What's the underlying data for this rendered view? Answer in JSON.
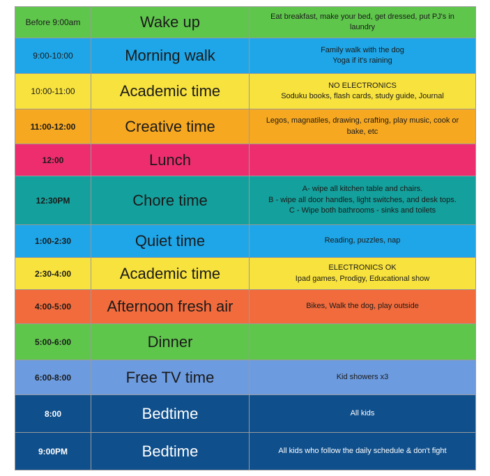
{
  "rows": [
    {
      "time": "Before 9:00am",
      "activity": "Wake up",
      "notes": [
        "Eat breakfast, make your bed, get dressed, put PJ's in",
        "laundry"
      ],
      "color": "#5fc64c",
      "text_color": "#1a1a1a",
      "height": 45
    },
    {
      "time": "9:00-10:00",
      "activity": "Morning walk",
      "notes": [
        "Family walk with the dog",
        "Yoga if it's raining"
      ],
      "color": "#1ea6e8",
      "text_color": "#1a1a1a",
      "height": 51
    },
    {
      "time": "10:00-11:00",
      "activity": "Academic time",
      "notes": [
        "NO ELECTRONICS",
        "Soduku books, flash cards, study guide, Journal"
      ],
      "color": "#f8e23d",
      "text_color": "#1a1a1a",
      "height": 51
    },
    {
      "time": "11:00-12:00",
      "activity": "Creative time",
      "notes": [
        "Legos, magnatiles, drawing, crafting, play music, cook or",
        "bake, etc"
      ],
      "color": "#f7a821",
      "text_color": "#1a1a1a",
      "height": 50
    },
    {
      "time": "12:00",
      "activity": "Lunch",
      "notes": [],
      "color": "#ee2d6e",
      "text_color": "#1a1a1a",
      "height": 46
    },
    {
      "time": "12:30PM",
      "activity": "Chore time",
      "notes": [
        "A- wipe all kitchen table and chairs.",
        "B - wipe all door handles, light switches, and desk tops.",
        "C - Wipe both bathrooms - sinks and toilets"
      ],
      "color": "#14a09c",
      "text_color": "#1a1a1a",
      "height": 70
    },
    {
      "time": "1:00-2:30",
      "activity": "Quiet time",
      "notes": [
        "Reading, puzzles, nap"
      ],
      "color": "#1ea6e8",
      "text_color": "#1a1a1a",
      "height": 47
    },
    {
      "time": "2:30-4:00",
      "activity": "Academic time",
      "notes": [
        "ELECTRONICS OK",
        "Ipad games, Prodigy, Educational show"
      ],
      "color": "#f8e23d",
      "text_color": "#1a1a1a",
      "height": 46
    },
    {
      "time": "4:00-5:00",
      "activity": "Afternoon fresh air",
      "notes": [
        "Bikes, Walk the dog, play outside"
      ],
      "color": "#f26b3c",
      "text_color": "#1a1a1a",
      "height": 49
    },
    {
      "time": "5:00-6:00",
      "activity": "Dinner",
      "notes": [],
      "color": "#5fc64c",
      "text_color": "#1a1a1a",
      "height": 52
    },
    {
      "time": "6:00-8:00",
      "activity": "Free TV time",
      "notes": [
        "Kid showers x3"
      ],
      "color": "#6c9be0",
      "text_color": "#1a1a1a",
      "height": 50
    },
    {
      "time": "8:00",
      "activity": "Bedtime",
      "notes": [
        "All kids"
      ],
      "color": "#0f4f8c",
      "text_color": "#ffffff",
      "height": 54
    },
    {
      "time": "9:00PM",
      "activity": "Bedtime",
      "notes": [
        "All kids who follow the daily schedule & don't fight"
      ],
      "color": "#0f4f8c",
      "text_color": "#ffffff",
      "height": 54
    }
  ]
}
